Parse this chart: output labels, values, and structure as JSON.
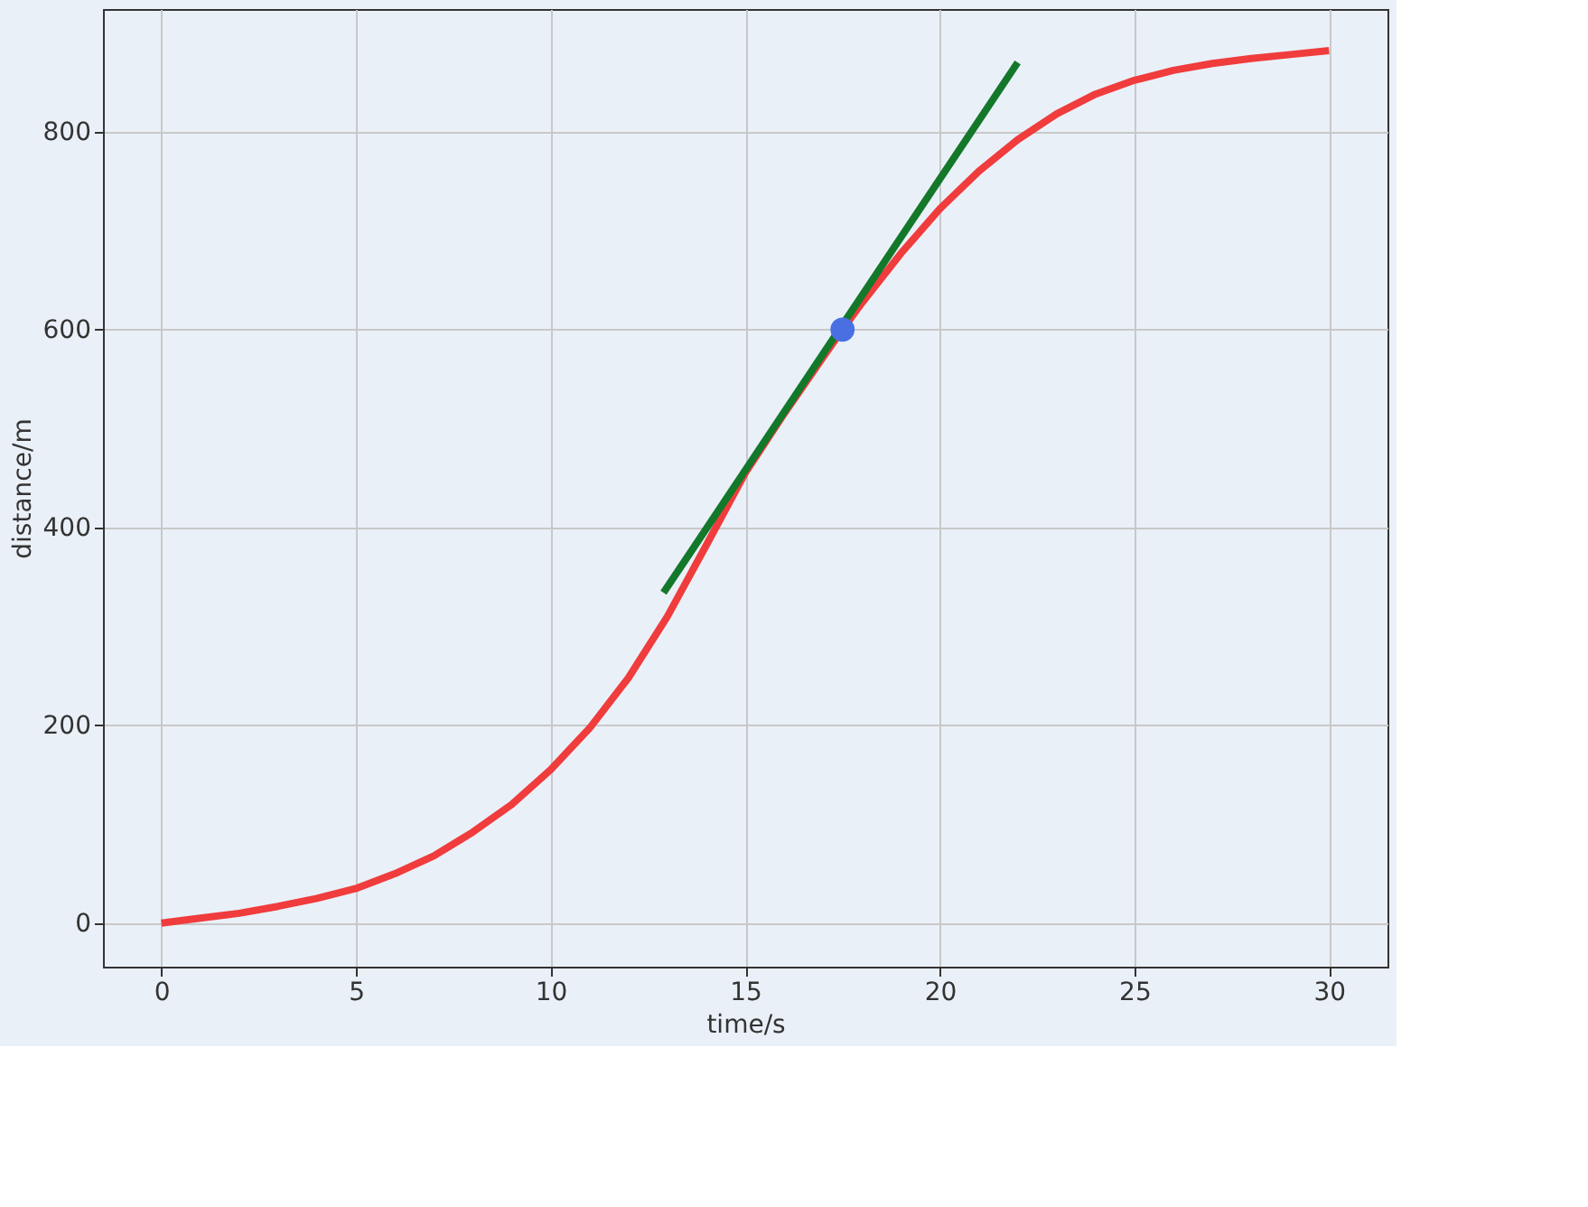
{
  "chart_data": {
    "type": "line",
    "xlabel": "time/s",
    "ylabel": "distance/m",
    "xlim": [
      -1.5,
      31.5
    ],
    "ylim": [
      -44,
      924
    ],
    "xticks": [
      0,
      5,
      10,
      15,
      20,
      25,
      30
    ],
    "yticks": [
      0,
      200,
      400,
      600,
      800
    ],
    "grid": true,
    "line_style": "solid",
    "series": [
      {
        "color": "#f03c3c",
        "x": [
          0,
          1,
          2,
          3,
          4,
          5,
          6,
          7,
          8,
          9,
          10,
          11,
          12,
          13,
          14,
          15,
          16,
          17,
          17.5,
          18,
          19,
          20,
          21,
          22,
          23,
          24,
          25,
          26,
          27,
          28,
          29,
          30
        ],
        "values": [
          0,
          5,
          10,
          17,
          25,
          35,
          50,
          68,
          92,
          120,
          155,
          197,
          248,
          310,
          382,
          455,
          515,
          572,
          600,
          627,
          677,
          722,
          760,
          792,
          818,
          838,
          852,
          862,
          869,
          874,
          878,
          882
        ]
      },
      {
        "color": "#13782a",
        "x": [
          12.9,
          22.0
        ],
        "values": [
          334,
          870
        ]
      },
      {
        "type": "scatter",
        "color": "#4a6fe3",
        "marker": "circle",
        "x": [
          17.5
        ],
        "values": [
          600
        ]
      }
    ]
  }
}
